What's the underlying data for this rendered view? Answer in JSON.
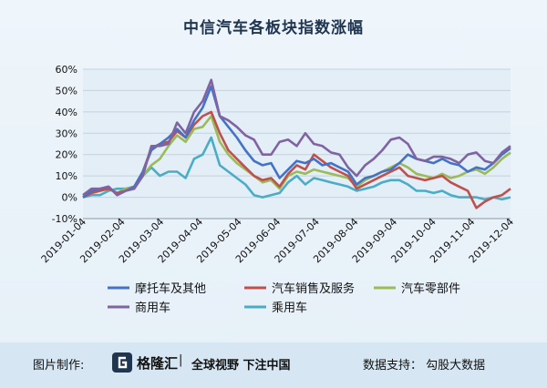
{
  "chart_data": {
    "type": "line",
    "title": "中信汽车各板块指数涨幅",
    "xlabel": "",
    "ylabel": "",
    "ylim": [
      -10,
      60
    ],
    "yticks": [
      "-10%",
      "0%",
      "10%",
      "20%",
      "30%",
      "40%",
      "50%",
      "60%"
    ],
    "xticks": [
      "2019-01-04",
      "2019-02-04",
      "2019-03-04",
      "2019-04-04",
      "2019-05-04",
      "2019-06-04",
      "2019-07-04",
      "2019-08-04",
      "2019-09-04",
      "2019-10-04",
      "2019-11-04",
      "2019-12-04"
    ],
    "grid": true,
    "legend_placement": "bottom",
    "series": [
      {
        "name": "摩托车及其他",
        "color": "#4472c4",
        "values": [
          0,
          3,
          4,
          5,
          1,
          3,
          5,
          12,
          22,
          25,
          28,
          32,
          28,
          36,
          42,
          52,
          38,
          33,
          28,
          22,
          17,
          15,
          16,
          9,
          13,
          17,
          16,
          18,
          15,
          16,
          14,
          12,
          6,
          9,
          10,
          12,
          13,
          16,
          20,
          18,
          17,
          16,
          18,
          16,
          15,
          12,
          14,
          13,
          16,
          20,
          23
        ]
      },
      {
        "name": "汽车销售及服务",
        "color": "#c0504d",
        "values": [
          0,
          2,
          3,
          4,
          2,
          3,
          5,
          12,
          23,
          25,
          26,
          31,
          28,
          34,
          38,
          40,
          30,
          22,
          18,
          14,
          10,
          8,
          9,
          5,
          11,
          15,
          13,
          20,
          17,
          14,
          12,
          10,
          4,
          6,
          8,
          10,
          12,
          14,
          10,
          9,
          8,
          9,
          10,
          7,
          5,
          3,
          -5,
          -2,
          0,
          1,
          4
        ]
      },
      {
        "name": "汽车零部件",
        "color": "#9bbb59",
        "values": [
          0,
          2,
          3,
          4,
          2,
          4,
          5,
          10,
          15,
          18,
          24,
          29,
          26,
          32,
          33,
          38,
          26,
          20,
          16,
          13,
          10,
          7,
          8,
          4,
          10,
          12,
          11,
          13,
          12,
          11,
          10,
          9,
          5,
          8,
          10,
          12,
          14,
          16,
          14,
          11,
          10,
          9,
          11,
          9,
          10,
          12,
          13,
          11,
          14,
          18,
          21
        ]
      },
      {
        "name": "商用车",
        "color": "#8064a2",
        "values": [
          1,
          4,
          4,
          5,
          1,
          3,
          4,
          10,
          24,
          24,
          25,
          35,
          30,
          40,
          45,
          55,
          38,
          36,
          33,
          29,
          27,
          20,
          20,
          26,
          27,
          24,
          30,
          25,
          24,
          21,
          20,
          14,
          10,
          15,
          18,
          22,
          27,
          28,
          25,
          18,
          17,
          19,
          19,
          18,
          16,
          20,
          21,
          17,
          16,
          21,
          24
        ]
      },
      {
        "name": "乘用车",
        "color": "#4bacc6",
        "values": [
          0,
          1,
          1,
          3,
          4,
          4,
          5,
          10,
          14,
          10,
          12,
          12,
          9,
          18,
          20,
          28,
          15,
          12,
          9,
          6,
          1,
          0,
          1,
          2,
          7,
          10,
          6,
          9,
          8,
          7,
          6,
          5,
          3,
          4,
          5,
          7,
          8,
          8,
          6,
          3,
          3,
          2,
          3,
          1,
          0,
          0,
          0,
          -1,
          0,
          -1,
          0
        ]
      }
    ]
  },
  "footer": {
    "made_by": "图片制作:",
    "brand": "格隆汇",
    "separator": "|",
    "slogan": "全球视野 下注中国",
    "data_support": "数据支持：  勾股大数据"
  }
}
